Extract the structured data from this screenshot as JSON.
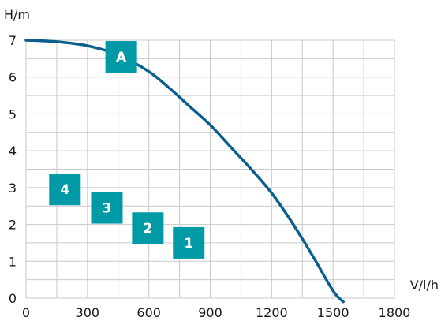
{
  "chart_data": {
    "type": "line",
    "xlabel": "V/l/h",
    "ylabel": "H/m",
    "xlim": [
      0,
      1800
    ],
    "ylim": [
      0,
      7
    ],
    "x_ticks": [
      "0",
      "300",
      "600",
      "900",
      "1200",
      "1500",
      "1800"
    ],
    "y_ticks": [
      "0",
      "1",
      "2",
      "3",
      "4",
      "5",
      "6",
      "7"
    ],
    "grid": true,
    "series": [
      {
        "color": "#0b5f8e",
        "x": [
          0,
          150,
          300,
          450,
          600,
          700,
          800,
          900,
          1000,
          1100,
          1200,
          1300,
          1400,
          1500,
          1550
        ],
        "y": [
          7.0,
          6.96,
          6.85,
          6.6,
          6.15,
          5.7,
          5.2,
          4.7,
          4.1,
          3.5,
          2.85,
          2.05,
          1.15,
          0.2,
          -0.1
        ]
      }
    ],
    "markers": [
      {
        "label": "A",
        "x": 465,
        "y": 6.55,
        "color": "#009aa6"
      },
      {
        "label": "4",
        "x": 190,
        "y": 2.95,
        "color": "#009aa6"
      },
      {
        "label": "3",
        "x": 395,
        "y": 2.45,
        "color": "#009aa6"
      },
      {
        "label": "2",
        "x": 595,
        "y": 1.9,
        "color": "#009aa6"
      },
      {
        "label": "1",
        "x": 795,
        "y": 1.5,
        "color": "#009aa6"
      }
    ]
  }
}
